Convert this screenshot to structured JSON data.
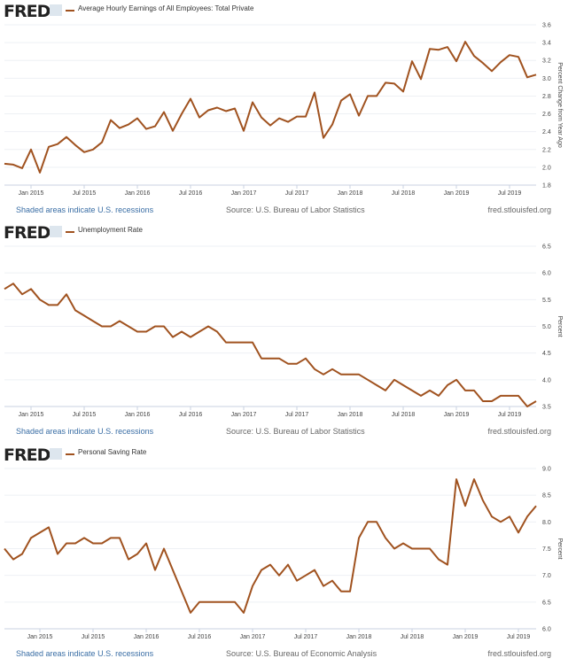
{
  "source_site": "fred.stlouisfed.org",
  "recession_note": "Shaded areas indicate U.S. recessions",
  "logo": "FRED",
  "line_color": "#a0521f",
  "chart_data": [
    {
      "type": "line",
      "title": "Average Hourly Earnings of All Employees: Total Private",
      "ylabel": "Percent Change from Year Ago",
      "source": "Source: U.S. Bureau of Labor Statistics",
      "ylim": [
        1.8,
        3.6
      ],
      "yticks": [
        "1.8",
        "2.0",
        "2.2",
        "2.4",
        "2.6",
        "2.8",
        "3.0",
        "3.2",
        "3.4",
        "3.6"
      ],
      "grid": true,
      "start": "2014-10",
      "xtick_labels": [
        "Jan 2015",
        "Jul 2015",
        "Jan 2016",
        "Jul 2016",
        "Jan 2017",
        "Jul 2017",
        "Jan 2018",
        "Jul 2018",
        "Jan 2019",
        "Jul 2019"
      ],
      "xtick_dates": [
        "2015-01",
        "2015-07",
        "2016-01",
        "2016-07",
        "2017-01",
        "2017-07",
        "2018-01",
        "2018-07",
        "2019-01",
        "2019-07"
      ],
      "values": [
        2.04,
        2.03,
        1.99,
        2.2,
        1.94,
        2.23,
        2.26,
        2.34,
        2.25,
        2.17,
        2.2,
        2.28,
        2.53,
        2.44,
        2.48,
        2.55,
        2.43,
        2.46,
        2.62,
        2.41,
        2.6,
        2.77,
        2.56,
        2.64,
        2.67,
        2.63,
        2.66,
        2.41,
        2.73,
        2.56,
        2.47,
        2.55,
        2.51,
        2.57,
        2.57,
        2.84,
        2.33,
        2.48,
        2.75,
        2.82,
        2.58,
        2.8,
        2.8,
        2.95,
        2.94,
        2.85,
        3.19,
        2.99,
        3.33,
        3.32,
        3.35,
        3.19,
        3.41,
        3.25,
        3.17,
        3.08,
        3.18,
        3.26,
        3.24,
        3.01,
        3.04
      ]
    },
    {
      "type": "line",
      "title": "Unemployment Rate",
      "ylabel": "Percent",
      "source": "Source: U.S. Bureau of Labor Statistics",
      "ylim": [
        3.5,
        6.5
      ],
      "yticks": [
        "3.5",
        "4.0",
        "4.5",
        "5.0",
        "5.5",
        "6.0",
        "6.5"
      ],
      "grid": true,
      "start": "2014-10",
      "xtick_labels": [
        "Jan 2015",
        "Jul 2015",
        "Jan 2016",
        "Jul 2016",
        "Jan 2017",
        "Jul 2017",
        "Jan 2018",
        "Jul 2018",
        "Jan 2019",
        "Jul 2019"
      ],
      "xtick_dates": [
        "2015-01",
        "2015-07",
        "2016-01",
        "2016-07",
        "2017-01",
        "2017-07",
        "2018-01",
        "2018-07",
        "2019-01",
        "2019-07"
      ],
      "values": [
        5.7,
        5.8,
        5.6,
        5.7,
        5.5,
        5.4,
        5.4,
        5.6,
        5.3,
        5.2,
        5.1,
        5.0,
        5.0,
        5.1,
        5.0,
        4.9,
        4.9,
        5.0,
        5.0,
        4.8,
        4.9,
        4.8,
        4.9,
        5.0,
        4.9,
        4.7,
        4.7,
        4.7,
        4.7,
        4.4,
        4.4,
        4.4,
        4.3,
        4.3,
        4.4,
        4.2,
        4.1,
        4.2,
        4.1,
        4.1,
        4.1,
        4.0,
        3.9,
        3.8,
        4.0,
        3.9,
        3.8,
        3.7,
        3.8,
        3.7,
        3.9,
        4.0,
        3.8,
        3.8,
        3.6,
        3.6,
        3.7,
        3.7,
        3.7,
        3.5,
        3.6
      ]
    },
    {
      "type": "line",
      "title": "Personal Saving Rate",
      "ylabel": "Percent",
      "source": "Source: U.S. Bureau of Economic Analysis",
      "ylim": [
        6.0,
        9.0
      ],
      "yticks": [
        "6.0",
        "6.5",
        "7.0",
        "7.5",
        "8.0",
        "8.5",
        "9.0"
      ],
      "grid": true,
      "start": "2014-09",
      "xtick_labels": [
        "Jan 2015",
        "Jul 2015",
        "Jan 2016",
        "Jul 2016",
        "Jan 2017",
        "Jul 2017",
        "Jan 2018",
        "Jul 2018",
        "Jan 2019",
        "Jul 2019"
      ],
      "xtick_dates": [
        "2015-01",
        "2015-07",
        "2016-01",
        "2016-07",
        "2017-01",
        "2017-07",
        "2018-01",
        "2018-07",
        "2019-01",
        "2019-07"
      ],
      "values": [
        7.5,
        7.3,
        7.4,
        7.7,
        7.8,
        7.9,
        7.4,
        7.6,
        7.6,
        7.7,
        7.6,
        7.6,
        7.7,
        7.7,
        7.3,
        7.4,
        7.6,
        7.1,
        7.5,
        7.1,
        6.7,
        6.3,
        6.5,
        6.5,
        6.5,
        6.5,
        6.5,
        6.3,
        6.8,
        7.1,
        7.2,
        7.0,
        7.2,
        6.9,
        7.0,
        7.1,
        6.8,
        6.9,
        6.7,
        6.7,
        7.7,
        8.0,
        8.0,
        7.7,
        7.5,
        7.6,
        7.5,
        7.5,
        7.5,
        7.3,
        7.2,
        8.8,
        8.3,
        8.8,
        8.4,
        8.1,
        8.0,
        8.1,
        7.8,
        8.1,
        8.3
      ]
    }
  ]
}
